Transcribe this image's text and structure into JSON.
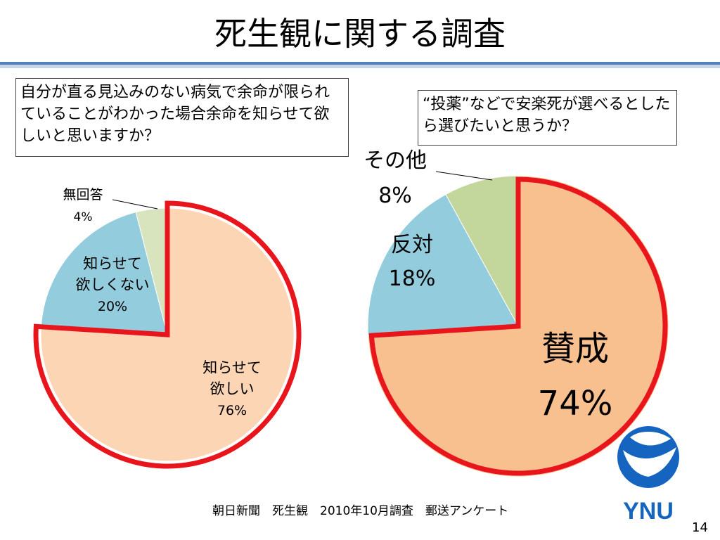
{
  "title": "死生観に関する調査",
  "question_left": "自分が直る見込みのない病気で余命が限られていることがわかった場合余命を知らせて欲しいと思いますか？",
  "question_right": "“投薬”などで安楽死が選べるとしたら選びたいと思うか？",
  "source": "朝日新聞　死生観　2010年10月調査　郵送アンケート",
  "page_number": "14",
  "logo_text": "YNU",
  "chart_data": [
    {
      "type": "pie",
      "slices": [
        {
          "label_lines": [
            "知らせて",
            "欲しい"
          ],
          "pct_label": "76%",
          "value": 76,
          "color": "#fcd5b5"
        },
        {
          "label_lines": [
            "知らせて",
            "欲しくない"
          ],
          "pct_label": "20%",
          "value": 20,
          "color": "#93cddd"
        },
        {
          "label_lines": [
            "無回答"
          ],
          "pct_label": "4%",
          "value": 4,
          "color": "#d7e4bd"
        }
      ],
      "highlight": "知らせて欲しい",
      "highlight_color": "#e8161c"
    },
    {
      "type": "pie",
      "slices": [
        {
          "label_lines": [
            "賛成"
          ],
          "pct_label": "74%",
          "value": 74,
          "color": "#f8bf8f"
        },
        {
          "label_lines": [
            "反対"
          ],
          "pct_label": "18%",
          "value": 18,
          "color": "#93cddd"
        },
        {
          "label_lines": [
            "その他"
          ],
          "pct_label": "8%",
          "value": 8,
          "color": "#c3d69b"
        }
      ],
      "highlight": "賛成",
      "highlight_color": "#e8161c"
    }
  ]
}
